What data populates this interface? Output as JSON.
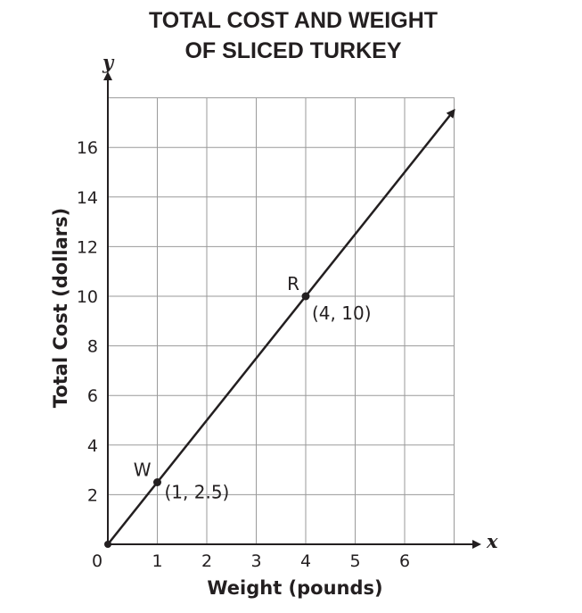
{
  "chart_data": {
    "type": "line",
    "title_lines": [
      "TOTAL COST AND WEIGHT",
      "OF SLICED TURKEY"
    ],
    "xlabel": "Weight (pounds)",
    "ylabel": "Total Cost (dollars)",
    "x_axis_letter": "x",
    "y_axis_letter": "y",
    "origin_label": "0",
    "xlim": [
      0,
      7
    ],
    "ylim": [
      0,
      18
    ],
    "x_ticks": [
      1,
      2,
      3,
      4,
      5,
      6
    ],
    "y_ticks": [
      2,
      4,
      6,
      8,
      10,
      12,
      14,
      16
    ],
    "grid": true,
    "series": [
      {
        "x": [
          0,
          7
        ],
        "y": [
          0,
          17.5
        ],
        "color": "#231f20"
      }
    ],
    "points": [
      {
        "name": "W",
        "x": 1,
        "y": 2.5,
        "coord_label": "(1, 2.5)"
      },
      {
        "name": "R",
        "x": 4,
        "y": 10,
        "coord_label": "(4, 10)"
      }
    ]
  }
}
